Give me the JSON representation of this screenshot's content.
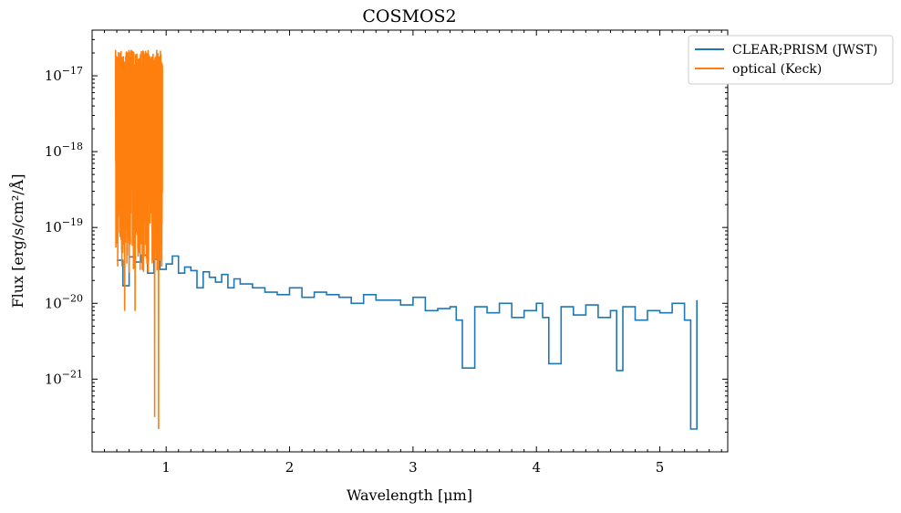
{
  "chart_data": {
    "type": "line",
    "title": "COSMOS2",
    "xlabel": "Wavelength [μm]",
    "ylabel": "Flux [erg/s/cm²/Å]",
    "xlim": [
      0.4,
      5.55
    ],
    "ylim": [
      1.1e-22,
      4e-17
    ],
    "yscale": "log",
    "grid": false,
    "legend_position": "top-right-outside",
    "x_ticks": [
      1,
      2,
      3,
      4,
      5
    ],
    "x_tick_labels": [
      "1",
      "2",
      "3",
      "4",
      "5"
    ],
    "y_ticks": [
      1e-21,
      1e-20,
      1e-19,
      1e-18,
      1e-17
    ],
    "y_tick_labels": [
      {
        "base": "10",
        "exp": "−21"
      },
      {
        "base": "10",
        "exp": "−20"
      },
      {
        "base": "10",
        "exp": "−19"
      },
      {
        "base": "10",
        "exp": "−18"
      },
      {
        "base": "10",
        "exp": "−17"
      }
    ],
    "series": [
      {
        "name": "CLEAR;PRISM (JWST)",
        "color": "#1f77b4",
        "step": true,
        "x": [
          0.6,
          0.65,
          0.7,
          0.75,
          0.8,
          0.85,
          0.9,
          0.95,
          1.0,
          1.05,
          1.1,
          1.15,
          1.2,
          1.25,
          1.3,
          1.35,
          1.4,
          1.45,
          1.5,
          1.55,
          1.6,
          1.7,
          1.8,
          1.9,
          2.0,
          2.1,
          2.2,
          2.3,
          2.4,
          2.5,
          2.6,
          2.7,
          2.8,
          2.9,
          3.0,
          3.1,
          3.2,
          3.3,
          3.35,
          3.4,
          3.5,
          3.6,
          3.7,
          3.8,
          3.9,
          4.0,
          4.05,
          4.1,
          4.2,
          4.3,
          4.4,
          4.5,
          4.6,
          4.65,
          4.7,
          4.8,
          4.9,
          5.0,
          5.1,
          5.2,
          5.25,
          5.3
        ],
        "y": [
          3.7e-20,
          1.7e-20,
          4.1e-20,
          3.5e-20,
          4.3e-20,
          2.5e-20,
          3.8e-20,
          2.8e-20,
          3.3e-20,
          4.2e-20,
          2.5e-20,
          3e-20,
          2.7e-20,
          1.6e-20,
          2.6e-20,
          2.2e-20,
          1.9e-20,
          2.4e-20,
          1.6e-20,
          2.1e-20,
          1.8e-20,
          1.6e-20,
          1.4e-20,
          1.3e-20,
          1.6e-20,
          1.2e-20,
          1.4e-20,
          1.3e-20,
          1.2e-20,
          1e-20,
          1.3e-20,
          1.1e-20,
          1.1e-20,
          9.5e-21,
          1.2e-20,
          8e-21,
          8.5e-21,
          9e-21,
          6e-21,
          1.4e-21,
          9e-21,
          7.5e-21,
          1e-20,
          6.5e-21,
          8e-21,
          1e-20,
          6.5e-21,
          1.6e-21,
          9e-21,
          7e-21,
          9.5e-21,
          6.5e-21,
          8e-21,
          1.3e-21,
          9e-21,
          6e-21,
          8e-21,
          7.5e-21,
          1e-20,
          6e-21,
          2.2e-22,
          1.1e-20
        ]
      },
      {
        "name": "optical (Keck)",
        "color": "#ff7f0e",
        "step": false,
        "x_range": [
          0.59,
          0.97
        ],
        "upper_envelope": 2.2e-17,
        "min_value": 2.2e-22
      }
    ]
  }
}
